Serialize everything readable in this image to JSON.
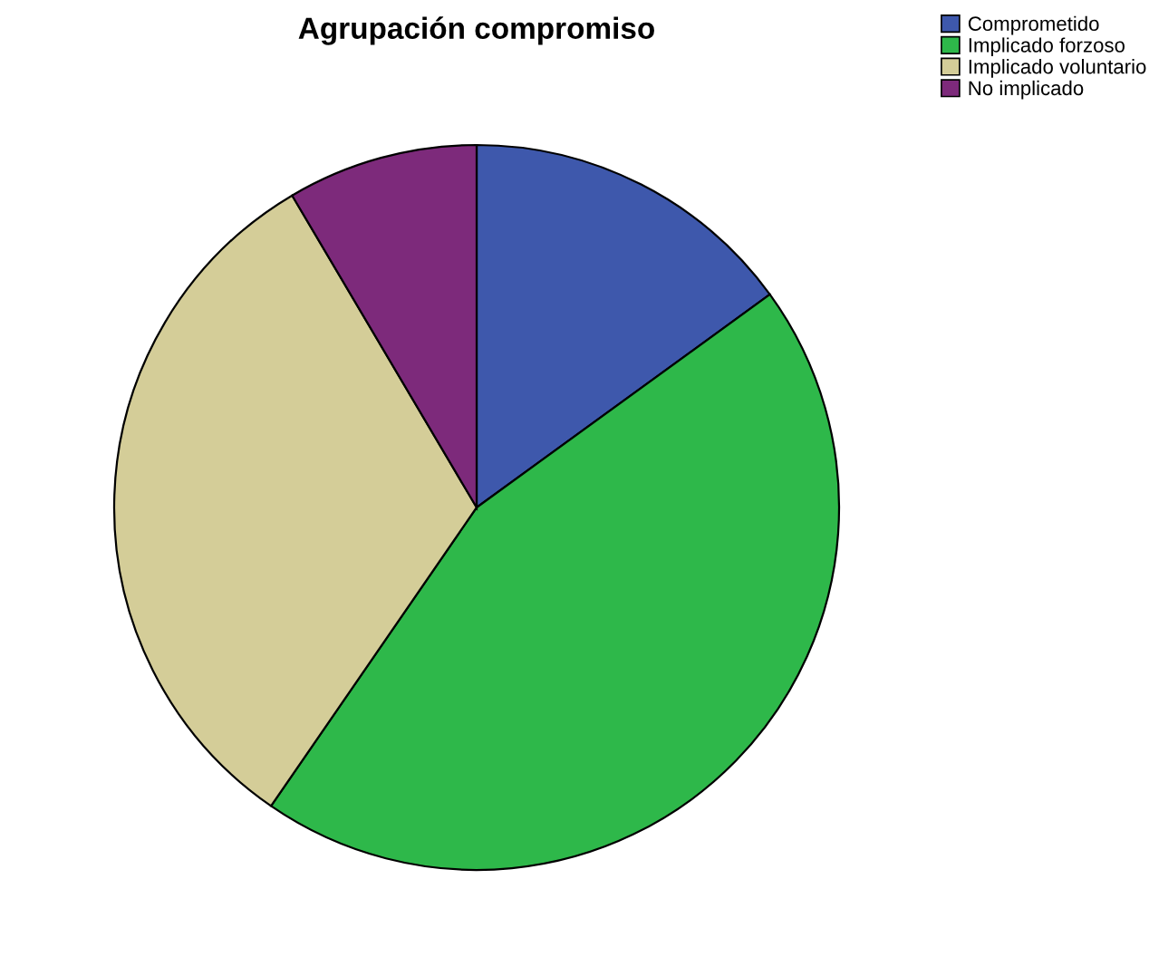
{
  "chart_data": {
    "type": "pie",
    "title": "Agrupación compromiso",
    "categories": [
      "Comprometido",
      "Implicado forzoso",
      "Implicado voluntario",
      "No implicado"
    ],
    "values": [
      15,
      44.6,
      31.9,
      8.5
    ],
    "colors": [
      "#3e58ac",
      "#2eb84a",
      "#d4cd98",
      "#7d2a7b"
    ],
    "legend": "top right"
  }
}
